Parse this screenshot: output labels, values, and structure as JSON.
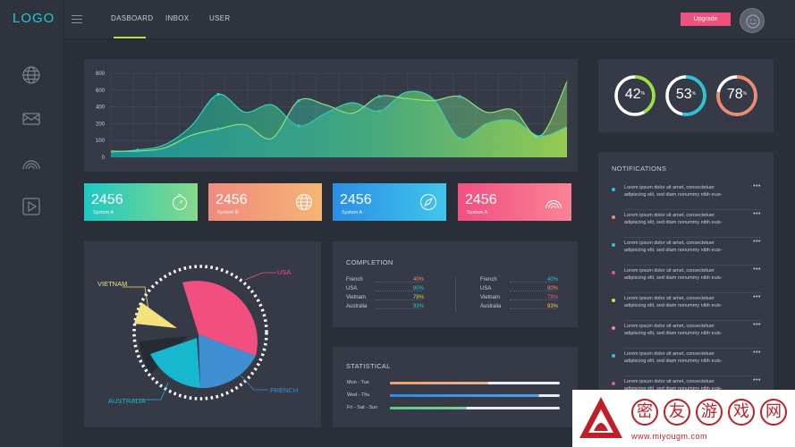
{
  "app": {
    "logo": "LOGO"
  },
  "nav": {
    "tabs": [
      {
        "label": "DASBOARD",
        "active": true
      },
      {
        "label": "INBOX"
      },
      {
        "label": "USER"
      }
    ],
    "upgrade_label": "Upgrade"
  },
  "sidebar": {
    "icons": [
      "globe-icon",
      "inbox-icon",
      "rainbow-icon",
      "play-icon"
    ]
  },
  "chart_data": {
    "type": "area",
    "title": "",
    "xlabel": "",
    "ylabel": "",
    "ylim": [
      0,
      800
    ],
    "yticks": [
      "800",
      "600",
      "400",
      "200",
      "100",
      "0"
    ],
    "grid": true,
    "series": [
      {
        "values": [
          50,
          70,
          120,
          300,
          600,
          430,
          500,
          300,
          420,
          520,
          440,
          620,
          560,
          180,
          320,
          350,
          200,
          290
        ]
      },
      {
        "values": [
          60,
          60,
          90,
          210,
          270,
          310,
          180,
          540,
          500,
          420,
          580,
          560,
          540,
          580,
          430,
          450,
          200,
          720
        ]
      }
    ]
  },
  "stat_cards": [
    {
      "value": "2456",
      "label": "System A",
      "icon": "timer-icon",
      "gradient": [
        "#1ec8c4",
        "#86d98a"
      ]
    },
    {
      "value": "2456",
      "label": "System B",
      "icon": "globe-icon",
      "gradient": [
        "#f08a7e",
        "#f5b575"
      ]
    },
    {
      "value": "2456",
      "label": "System A",
      "icon": "compass-icon",
      "gradient": [
        "#2b8ee6",
        "#3fc6ea"
      ]
    },
    {
      "value": "2456",
      "label": "System A",
      "icon": "rainbow-icon",
      "gradient": [
        "#f04f82",
        "#fb8394"
      ]
    }
  ],
  "pie": {
    "labels": {
      "usa": "USA",
      "vietnam": "VIETNAM",
      "australia": "AUSTRALIA",
      "french": "FRENCH"
    },
    "colors": {
      "usa": "#f24f81",
      "vietnam": "#f3e27c",
      "australia": "#17b8cd",
      "french": "#3f8fd2"
    }
  },
  "completion": {
    "title": "COMPLETION",
    "columns": [
      [
        {
          "name": "French",
          "pct": "40%",
          "color": "#f08a6e"
        },
        {
          "name": "USA",
          "pct": "90%",
          "color": "#22c8d8"
        },
        {
          "name": "Vietnam",
          "pct": "78%",
          "color": "#b6e23a"
        },
        {
          "name": "Australia",
          "pct": "93%",
          "color": "#22c8d8"
        }
      ],
      [
        {
          "name": "French",
          "pct": "40%",
          "color": "#22c8d8"
        },
        {
          "name": "USA",
          "pct": "90%",
          "color": "#f08a6e"
        },
        {
          "name": "Vietnam",
          "pct": "78%",
          "color": "#f24f81"
        },
        {
          "name": "Australia",
          "pct": "93%",
          "color": "#f3d04a"
        }
      ]
    ]
  },
  "statistical": {
    "title": "STATISTICAL",
    "rows": [
      {
        "label": "Mon - Tue",
        "fraction": 0.58,
        "color": "#f0a06e"
      },
      {
        "label": "Wed - Thu",
        "fraction": 0.88,
        "color": "#2b8ee6"
      },
      {
        "label": "Fri - Sat - Sun",
        "fraction": 0.45,
        "color": "#5ec98a"
      }
    ]
  },
  "gauges": [
    {
      "value": "42",
      "fraction": 0.42,
      "color": "#9be23a"
    },
    {
      "value": "53",
      "fraction": 0.53,
      "color": "#22c8d8"
    },
    {
      "value": "78",
      "fraction": 0.78,
      "color": "#f08a6e"
    }
  ],
  "notifications": {
    "title": "NOTIFICATIONS",
    "more_label": "•••",
    "items": [
      {
        "line1": "Lorem ipsum dolor sit amet, consectetuer",
        "line2": "adipiscing elit, sed diam nonummy nibh euis-",
        "color": "#22c8d8"
      },
      {
        "line1": "Lorem ipsum dolor sit amet, consectetuer",
        "line2": "adipiscing elit, sed diam nonummy nibh euis-",
        "color": "#f08a6e"
      },
      {
        "line1": "Lorem ipsum dolor sit amet, consectetuer",
        "line2": "adipiscing elit, sed diam nonummy nibh euis-",
        "color": "#22c8d8"
      },
      {
        "line1": "Lorem ipsum dolor sit amet, consectetuer",
        "line2": "adipiscing elit, sed diam nonummy nibh euis-",
        "color": "#f24f81"
      },
      {
        "line1": "Lorem ipsum dolor sit amet, consectetuer",
        "line2": "adipiscing elit, sed diam nonummy nibh euis-",
        "color": "#d4e23a"
      },
      {
        "line1": "Lorem ipsum dolor sit amet, consectetuer",
        "line2": "adipiscing elit, sed diam nonummy nibh euis-",
        "color": "#f08a8a"
      },
      {
        "line1": "Lorem ipsum dolor sit amet, consectetuer",
        "line2": "adipiscing elit, sed diam nonummy nibh euis-",
        "color": "#22c8d8"
      },
      {
        "line1": "Lorem ipsum dolor sit amet, consectetuer",
        "line2": "adipiscing elit, sed diam nonummy nibh euis-",
        "color": "#f24f81"
      }
    ]
  },
  "watermark": {
    "chars": [
      "密",
      "友",
      "游",
      "戏",
      "网"
    ],
    "url": "www.miyougm.com"
  }
}
